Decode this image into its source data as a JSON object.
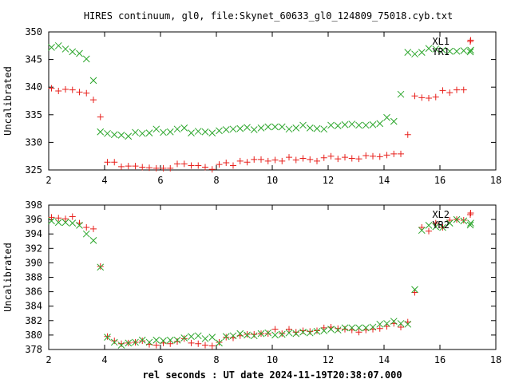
{
  "title": "HIRES continuum, gl0, file:Skynet_60633_gl0_124809_75018.cyb.txt",
  "chart_data": [
    {
      "type": "scatter",
      "title": "HIRES continuum, gl0, file:Skynet_60633_gl0_124809_75018.cyb.txt",
      "xlabel": "",
      "ylabel": "Uncalibrated",
      "xlim": [
        2,
        18
      ],
      "ylim": [
        325,
        350
      ],
      "xticks": [
        2,
        4,
        6,
        8,
        10,
        12,
        14,
        16,
        18
      ],
      "yticks": [
        325,
        330,
        335,
        340,
        345,
        350
      ],
      "legend_position": "top-right",
      "series": [
        {
          "name": "XL1",
          "marker": "plus",
          "color": "#e8201c",
          "x": [
            2.1,
            2.35,
            2.6,
            2.85,
            3.1,
            3.35,
            3.6,
            3.85,
            4.1,
            4.35,
            4.6,
            4.85,
            5.1,
            5.35,
            5.6,
            5.85,
            6.1,
            6.35,
            6.6,
            6.85,
            7.1,
            7.35,
            7.6,
            7.85,
            8.1,
            8.35,
            8.6,
            8.85,
            9.1,
            9.35,
            9.6,
            9.85,
            10.1,
            10.35,
            10.6,
            10.85,
            11.1,
            11.35,
            11.6,
            11.85,
            12.1,
            12.35,
            12.6,
            12.85,
            13.1,
            13.35,
            13.6,
            13.85,
            14.1,
            14.35,
            14.6,
            14.85,
            15.1,
            15.35,
            15.6,
            15.85,
            16.1,
            16.35,
            16.6,
            16.85,
            17.1
          ],
          "y": [
            339.8,
            339.3,
            339.6,
            339.5,
            339.1,
            338.9,
            337.7,
            334.6,
            326.4,
            326.4,
            325.6,
            325.7,
            325.7,
            325.5,
            325.4,
            325.3,
            325.3,
            325.3,
            326.1,
            326.1,
            325.8,
            325.8,
            325.5,
            325.1,
            326.0,
            326.3,
            325.8,
            326.6,
            326.4,
            326.9,
            326.9,
            326.6,
            326.8,
            326.6,
            327.3,
            326.8,
            327.1,
            326.9,
            326.6,
            327.2,
            327.5,
            327.0,
            327.3,
            327.1,
            327.0,
            327.6,
            327.5,
            327.4,
            327.7,
            327.9,
            327.9,
            331.4,
            338.4,
            338.1,
            338.0,
            338.2,
            339.4,
            339.0,
            339.5,
            339.5,
            348.5
          ]
        },
        {
          "name": "YR1",
          "marker": "cross",
          "color": "#2aa52a",
          "x": [
            2.1,
            2.35,
            2.6,
            2.85,
            3.1,
            3.35,
            3.6,
            3.85,
            4.1,
            4.35,
            4.6,
            4.85,
            5.1,
            5.35,
            5.6,
            5.85,
            6.1,
            6.35,
            6.6,
            6.85,
            7.1,
            7.35,
            7.6,
            7.85,
            8.1,
            8.35,
            8.6,
            8.85,
            9.1,
            9.35,
            9.6,
            9.85,
            10.1,
            10.35,
            10.6,
            10.85,
            11.1,
            11.35,
            11.6,
            11.85,
            12.1,
            12.35,
            12.6,
            12.85,
            13.1,
            13.35,
            13.6,
            13.85,
            14.1,
            14.35,
            14.6,
            14.85,
            15.1,
            15.35,
            15.6,
            15.85,
            16.1,
            16.35,
            16.6,
            16.85,
            17.1
          ],
          "y": [
            347.2,
            347.5,
            346.9,
            346.4,
            346.1,
            345.1,
            341.2,
            331.9,
            331.6,
            331.4,
            331.3,
            331.1,
            331.8,
            331.6,
            331.7,
            332.4,
            331.8,
            331.9,
            332.4,
            332.6,
            331.7,
            332.0,
            331.9,
            331.7,
            332.1,
            332.3,
            332.4,
            332.5,
            332.7,
            332.3,
            332.6,
            332.8,
            332.8,
            332.8,
            332.4,
            332.6,
            333.1,
            332.6,
            332.5,
            332.4,
            333.1,
            333.0,
            333.2,
            333.3,
            333.1,
            333.1,
            333.2,
            333.4,
            334.5,
            333.8,
            338.7,
            346.3,
            346.0,
            346.3,
            347.0,
            346.9,
            346.7,
            346.5,
            346.5,
            346.6,
            346.7
          ]
        }
      ]
    },
    {
      "type": "scatter",
      "title": "",
      "xlabel": "rel seconds : UT date 2024-11-19T20:38:07.000",
      "ylabel": "Uncalibrated",
      "xlim": [
        2,
        18
      ],
      "ylim": [
        378,
        398
      ],
      "xticks": [
        2,
        4,
        6,
        8,
        10,
        12,
        14,
        16,
        18
      ],
      "yticks": [
        378,
        380,
        382,
        384,
        386,
        388,
        390,
        392,
        394,
        396,
        398
      ],
      "legend_position": "top-right",
      "series": [
        {
          "name": "XL2",
          "marker": "plus",
          "color": "#e8201c",
          "x": [
            2.1,
            2.35,
            2.6,
            2.85,
            3.1,
            3.35,
            3.6,
            3.85,
            4.1,
            4.35,
            4.6,
            4.85,
            5.1,
            5.35,
            5.6,
            5.85,
            6.1,
            6.35,
            6.6,
            6.85,
            7.1,
            7.35,
            7.6,
            7.85,
            8.1,
            8.35,
            8.6,
            8.85,
            9.1,
            9.35,
            9.6,
            9.85,
            10.1,
            10.35,
            10.6,
            10.85,
            11.1,
            11.35,
            11.6,
            11.85,
            12.1,
            12.35,
            12.6,
            12.85,
            13.1,
            13.35,
            13.6,
            13.85,
            14.1,
            14.35,
            14.6,
            14.85,
            15.1,
            15.35,
            15.6,
            15.85,
            16.1,
            16.35,
            16.6,
            16.85,
            17.1
          ],
          "y": [
            396.3,
            396.2,
            396.1,
            396.4,
            395.5,
            394.9,
            394.7,
            389.5,
            379.8,
            379.2,
            378.8,
            378.9,
            379.0,
            379.2,
            378.7,
            378.6,
            378.9,
            378.8,
            379.1,
            379.5,
            378.9,
            378.8,
            378.6,
            378.5,
            379.0,
            379.7,
            379.6,
            379.9,
            380.1,
            380.1,
            380.2,
            380.2,
            380.8,
            380.2,
            380.8,
            380.4,
            380.6,
            380.5,
            380.6,
            381.0,
            381.1,
            380.9,
            380.8,
            380.7,
            380.4,
            380.7,
            380.8,
            380.9,
            381.2,
            381.6,
            381.1,
            381.8,
            385.9,
            394.9,
            394.4,
            395.5,
            394.9,
            395.9,
            396.0,
            395.9,
            396.9
          ]
        },
        {
          "name": "YR2",
          "marker": "cross",
          "color": "#2aa52a",
          "x": [
            2.1,
            2.35,
            2.6,
            2.85,
            3.1,
            3.35,
            3.6,
            3.85,
            4.1,
            4.35,
            4.6,
            4.85,
            5.1,
            5.35,
            5.6,
            5.85,
            6.1,
            6.35,
            6.6,
            6.85,
            7.1,
            7.35,
            7.6,
            7.85,
            8.1,
            8.35,
            8.6,
            8.85,
            9.1,
            9.35,
            9.6,
            9.85,
            10.1,
            10.35,
            10.6,
            10.85,
            11.1,
            11.35,
            11.6,
            11.85,
            12.1,
            12.35,
            12.6,
            12.85,
            13.1,
            13.35,
            13.6,
            13.85,
            14.1,
            14.35,
            14.6,
            14.85,
            15.1,
            15.35,
            15.6,
            15.85,
            16.1,
            16.35,
            16.6,
            16.85,
            17.1
          ],
          "y": [
            395.8,
            395.6,
            395.6,
            395.5,
            395.2,
            394.0,
            393.1,
            389.4,
            379.7,
            379.0,
            378.6,
            378.9,
            379.0,
            379.3,
            379.0,
            379.3,
            379.2,
            379.3,
            379.3,
            379.6,
            379.8,
            379.9,
            379.5,
            379.7,
            378.9,
            379.8,
            379.9,
            380.2,
            380.0,
            379.9,
            380.2,
            380.3,
            380.0,
            380.1,
            380.3,
            380.2,
            380.4,
            380.3,
            380.5,
            380.6,
            380.8,
            380.7,
            381.0,
            381.0,
            381.0,
            381.0,
            381.1,
            381.5,
            381.6,
            381.9,
            381.6,
            381.5,
            386.3,
            394.5,
            395.2,
            395.0,
            394.9,
            395.5,
            396.0,
            395.8,
            395.5
          ]
        }
      ]
    }
  ]
}
